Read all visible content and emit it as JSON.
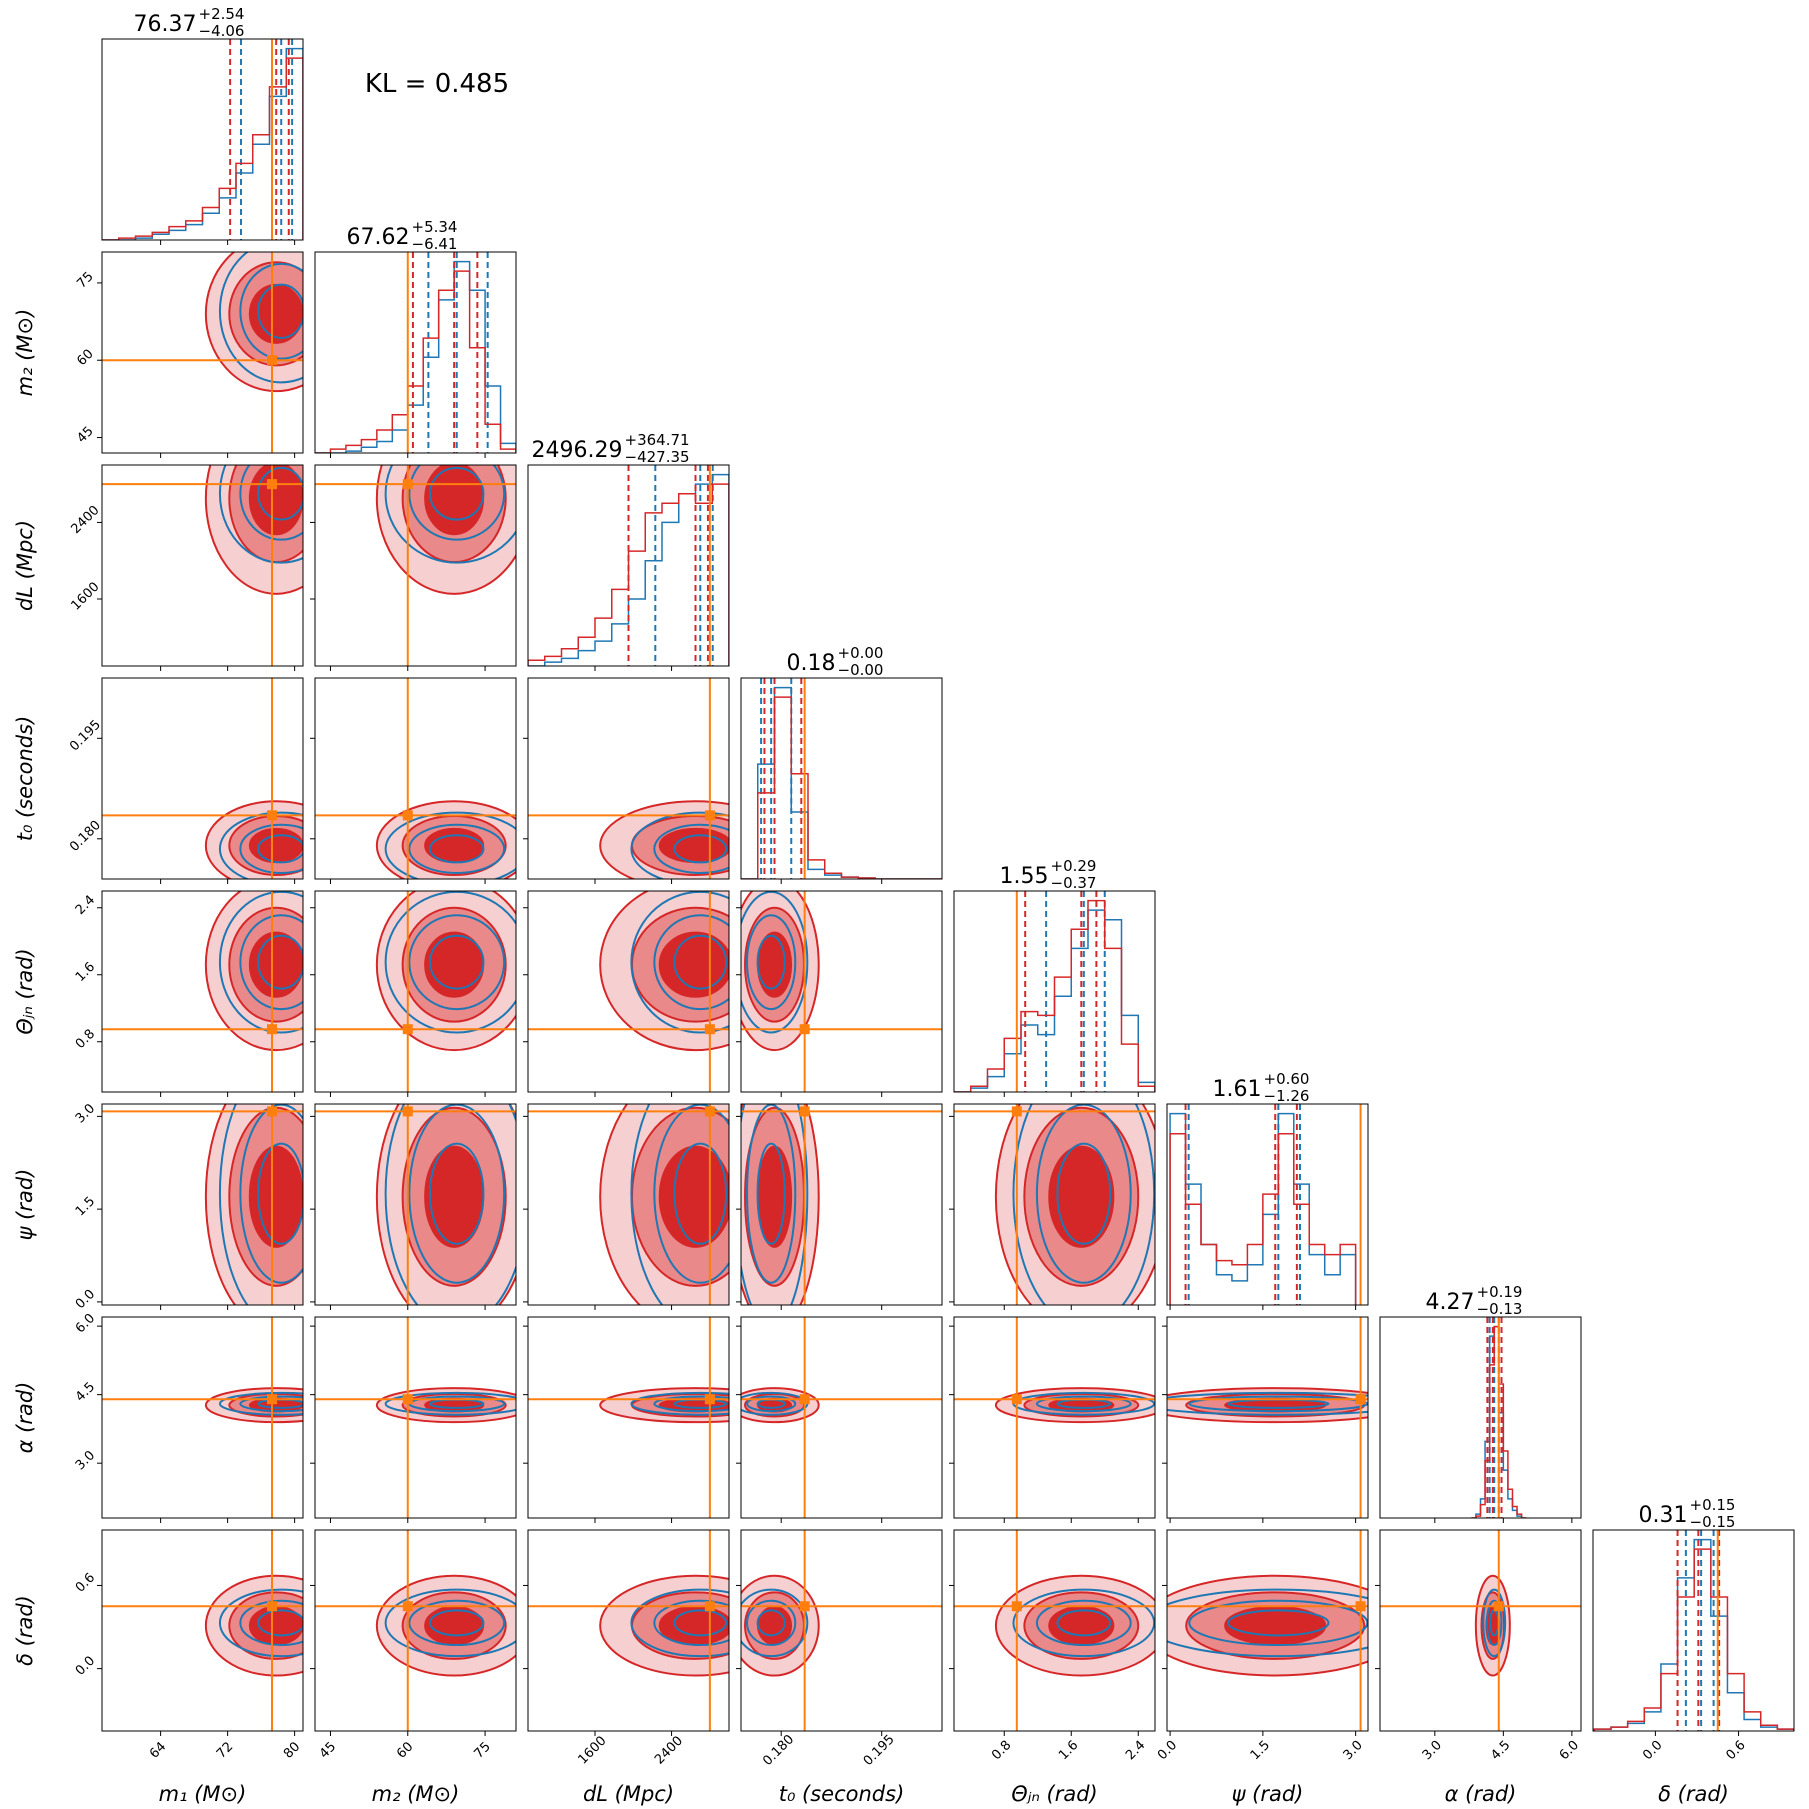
{
  "chart_data": {
    "type": "corner",
    "annotation": "KL = 0.485",
    "series": [
      {
        "color": "#1f77b4"
      },
      {
        "color": "#d62728"
      }
    ],
    "truth_color": "#ff7f0e",
    "params": [
      {
        "label": "m₁ (M⊙)",
        "median": "76.37",
        "upper": "+2.54",
        "lower": "−4.06",
        "xlim": [
          57,
          81
        ],
        "xticks": [
          64,
          72,
          80
        ],
        "truth": 77.3,
        "bins": [
          57,
          59,
          61,
          63,
          65,
          67,
          69,
          71,
          73,
          75,
          77,
          79,
          81
        ],
        "counts": [
          [
            0,
            0,
            0.01,
            0.03,
            0.05,
            0.08,
            0.14,
            0.22,
            0.35,
            0.5,
            0.75,
            1.0
          ],
          [
            0,
            0.01,
            0.02,
            0.04,
            0.07,
            0.1,
            0.17,
            0.27,
            0.4,
            0.55,
            0.8,
            0.95
          ]
        ],
        "quantiles": [
          [
            73.6,
            78.4,
            79.7
          ],
          [
            72.3,
            77.8,
            79.3
          ]
        ]
      },
      {
        "label": "m₂ (M⊙)",
        "median": "67.62",
        "upper": "+5.34",
        "lower": "−6.41",
        "xlim": [
          42,
          81
        ],
        "xticks": [
          45,
          60,
          75
        ],
        "truth": 60,
        "bins": [
          42,
          45,
          48,
          51,
          54,
          57,
          60,
          63,
          66,
          69,
          72,
          75,
          78,
          81
        ],
        "counts": [
          [
            0,
            0,
            0.01,
            0.03,
            0.06,
            0.12,
            0.25,
            0.5,
            0.8,
            1.0,
            0.85,
            0.35,
            0.05
          ],
          [
            0,
            0.02,
            0.04,
            0.07,
            0.12,
            0.2,
            0.35,
            0.6,
            0.85,
            0.95,
            0.55,
            0.15,
            0.02
          ]
        ],
        "quantiles": [
          [
            64,
            69.5,
            75.5
          ],
          [
            61,
            69,
            73.5
          ]
        ]
      },
      {
        "label": "dL (Mpc)",
        "median": "2496.29",
        "upper": "+364.71",
        "lower": "−427.35",
        "xlim": [
          900,
          3000
        ],
        "xticks": [
          1600,
          2400
        ],
        "truth": 2800,
        "bins": [
          900,
          1075,
          1250,
          1425,
          1600,
          1775,
          1950,
          2125,
          2300,
          2475,
          2650,
          2825,
          3000
        ],
        "counts": [
          [
            0,
            0.02,
            0.04,
            0.08,
            0.13,
            0.22,
            0.35,
            0.55,
            0.75,
            0.9,
            0.95,
            1.0
          ],
          [
            0.03,
            0.05,
            0.09,
            0.15,
            0.25,
            0.4,
            0.6,
            0.8,
            0.85,
            0.9,
            0.85,
            0.95
          ]
        ],
        "quantiles": [
          [
            2230,
            2700,
            2830
          ],
          [
            1950,
            2650,
            2780
          ]
        ]
      },
      {
        "label": "t₀ (seconds)",
        "median": "0.18",
        "upper": "+0.00",
        "lower": "−0.00",
        "xlim": [
          0.174,
          0.204
        ],
        "xticks": [
          {
            "value": 0.18,
            "label": "0.180"
          },
          0.195
        ],
        "truth": 0.1835,
        "bins": [
          0.174,
          0.1765,
          0.179,
          0.1815,
          0.184,
          0.1865,
          0.189,
          0.1915,
          0.194,
          0.1965,
          0.199,
          0.2015,
          0.204
        ],
        "counts": [
          [
            0,
            0.6,
            1.0,
            0.35,
            0.05,
            0.02,
            0.01,
            0.005,
            0,
            0,
            0,
            0
          ],
          [
            0,
            0.45,
            0.95,
            0.55,
            0.1,
            0.03,
            0.01,
            0.005,
            0,
            0,
            0,
            0
          ]
        ],
        "quantiles": [
          [
            0.177,
            0.1785,
            0.1815
          ],
          [
            0.1775,
            0.179,
            0.183
          ]
        ]
      },
      {
        "label": "Θⱼₙ (rad)",
        "median": "1.55",
        "upper": "+0.29",
        "lower": "−0.37",
        "xlim": [
          0.2,
          2.6
        ],
        "xticks": [
          0.8,
          1.6,
          2.4
        ],
        "truth": 0.95,
        "bins": [
          0.2,
          0.4,
          0.6,
          0.8,
          1.0,
          1.2,
          1.4,
          1.6,
          1.8,
          2.0,
          2.2,
          2.4,
          2.6
        ],
        "counts": [
          [
            0,
            0.02,
            0.08,
            0.2,
            0.35,
            0.3,
            0.5,
            0.75,
            0.95,
            0.9,
            0.4,
            0.05
          ],
          [
            0,
            0.03,
            0.12,
            0.28,
            0.42,
            0.4,
            0.6,
            0.85,
            1.0,
            0.75,
            0.25,
            0.03
          ]
        ],
        "quantiles": [
          [
            1.3,
            1.75,
            2.0
          ],
          [
            1.05,
            1.72,
            1.9
          ]
        ]
      },
      {
        "label": "ψ (rad)",
        "median": "1.61",
        "upper": "+0.60",
        "lower": "−1.26",
        "xlim": [
          -0.05,
          3.2
        ],
        "xticks": [
          {
            "value": 0,
            "label": "0.0"
          },
          1.5,
          {
            "value": 3,
            "label": "3.0"
          }
        ],
        "truth": 3.08,
        "bins": [
          0,
          0.25,
          0.5,
          0.75,
          1.0,
          1.25,
          1.5,
          1.75,
          2.0,
          2.25,
          2.5,
          2.75,
          3.0
        ],
        "counts": [
          [
            0.95,
            0.6,
            0.3,
            0.15,
            0.12,
            0.2,
            0.45,
            0.95,
            0.6,
            0.25,
            0.15,
            0.25
          ],
          [
            0.85,
            0.5,
            0.3,
            0.22,
            0.2,
            0.3,
            0.55,
            0.85,
            0.5,
            0.3,
            0.25,
            0.3
          ]
        ],
        "quantiles": [
          [
            0.3,
            1.75,
            2.1
          ],
          [
            0.25,
            1.7,
            2.05
          ]
        ]
      },
      {
        "label": "α (rad)",
        "median": "4.27",
        "upper": "+0.19",
        "lower": "−0.13",
        "xlim": [
          1.8,
          6.2
        ],
        "xticks": [
          {
            "value": 3,
            "label": "3.0"
          },
          4.5,
          {
            "value": 6,
            "label": "6.0"
          }
        ],
        "truth": 4.4,
        "bins": [
          3.8,
          3.9,
          4.0,
          4.1,
          4.2,
          4.3,
          4.4,
          4.5,
          4.6,
          4.7,
          4.8,
          4.9,
          5.0
        ],
        "counts": [
          [
            0,
            0.02,
            0.1,
            0.4,
            0.95,
            1.0,
            0.55,
            0.25,
            0.1,
            0.04,
            0.01,
            0
          ],
          [
            0,
            0.01,
            0.07,
            0.3,
            0.8,
            1.0,
            0.7,
            0.35,
            0.15,
            0.06,
            0.02,
            0
          ]
        ],
        "quantiles": [
          [
            4.2,
            4.3,
            4.4
          ],
          [
            4.15,
            4.27,
            4.46
          ]
        ]
      },
      {
        "label": "δ (rad)",
        "median": "0.31",
        "upper": "+0.15",
        "lower": "−0.15",
        "xlim": [
          -0.45,
          1.0
        ],
        "xticks": [
          {
            "value": 0,
            "label": "0.0"
          },
          0.6
        ],
        "truth": 0.45,
        "bins": [
          -0.44,
          -0.32,
          -0.2,
          -0.08,
          0.04,
          0.16,
          0.28,
          0.4,
          0.52,
          0.64,
          0.76,
          0.88,
          1.0
        ],
        "counts": [
          [
            0.01,
            0.02,
            0.04,
            0.1,
            0.35,
            0.8,
            1.0,
            0.6,
            0.2,
            0.06,
            0.02,
            0.01
          ],
          [
            0.01,
            0.02,
            0.05,
            0.12,
            0.3,
            0.7,
            0.95,
            0.7,
            0.3,
            0.1,
            0.03,
            0.01
          ]
        ],
        "quantiles": [
          [
            0.22,
            0.33,
            0.42
          ],
          [
            0.16,
            0.31,
            0.46
          ]
        ]
      }
    ]
  }
}
